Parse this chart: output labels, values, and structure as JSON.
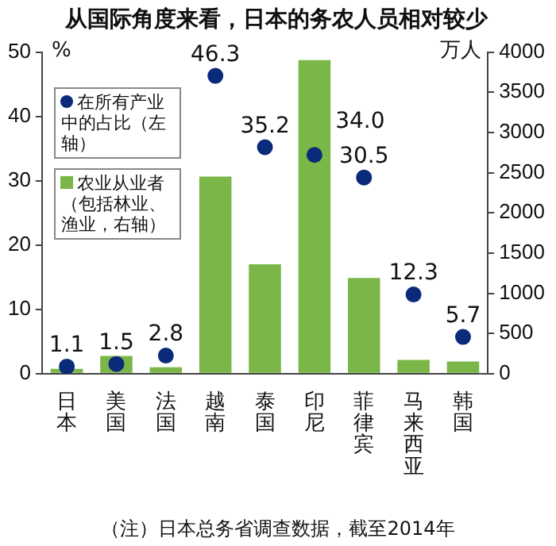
{
  "chart_data": {
    "type": "bar",
    "title": "从国际角度来看，日本的务农人员相对较少",
    "ylabel": "%",
    "y2label": "万人",
    "categories": [
      "日本",
      "美国",
      "法国",
      "越南",
      "泰国",
      "印尼",
      "菲律宾",
      "马来西亚",
      "韩国"
    ],
    "series": [
      {
        "name": "农业从业者（包括林业、渔业，右轴）",
        "axis": "y2",
        "color": "#7ab648",
        "values": [
          60,
          220,
          80,
          2450,
          1360,
          3900,
          1190,
          170,
          150
        ]
      },
      {
        "name": "在所有产业中的占比（左轴）",
        "type": "scatter",
        "color": "#0a2a7a",
        "marker": "circle",
        "values": [
          1.1,
          1.5,
          2.8,
          46.3,
          35.2,
          34.0,
          30.5,
          12.3,
          5.7
        ],
        "value_labels": [
          "1.1",
          "1.5",
          "2.8",
          "46.3",
          "35.2",
          "34.0",
          "30.5",
          "12.3",
          "5.7"
        ]
      }
    ],
    "ylim": [
      0,
      50
    ],
    "yticks": [
      0,
      10,
      20,
      30,
      40,
      50
    ],
    "y2lim": [
      0,
      4000
    ],
    "y2ticks": [
      0,
      500,
      1000,
      1500,
      2000,
      2500,
      3000,
      3500,
      4000
    ],
    "grid": false,
    "legend": "top left",
    "annotations": [
      "（注）日本总务省调查数据，截至2014年"
    ]
  }
}
